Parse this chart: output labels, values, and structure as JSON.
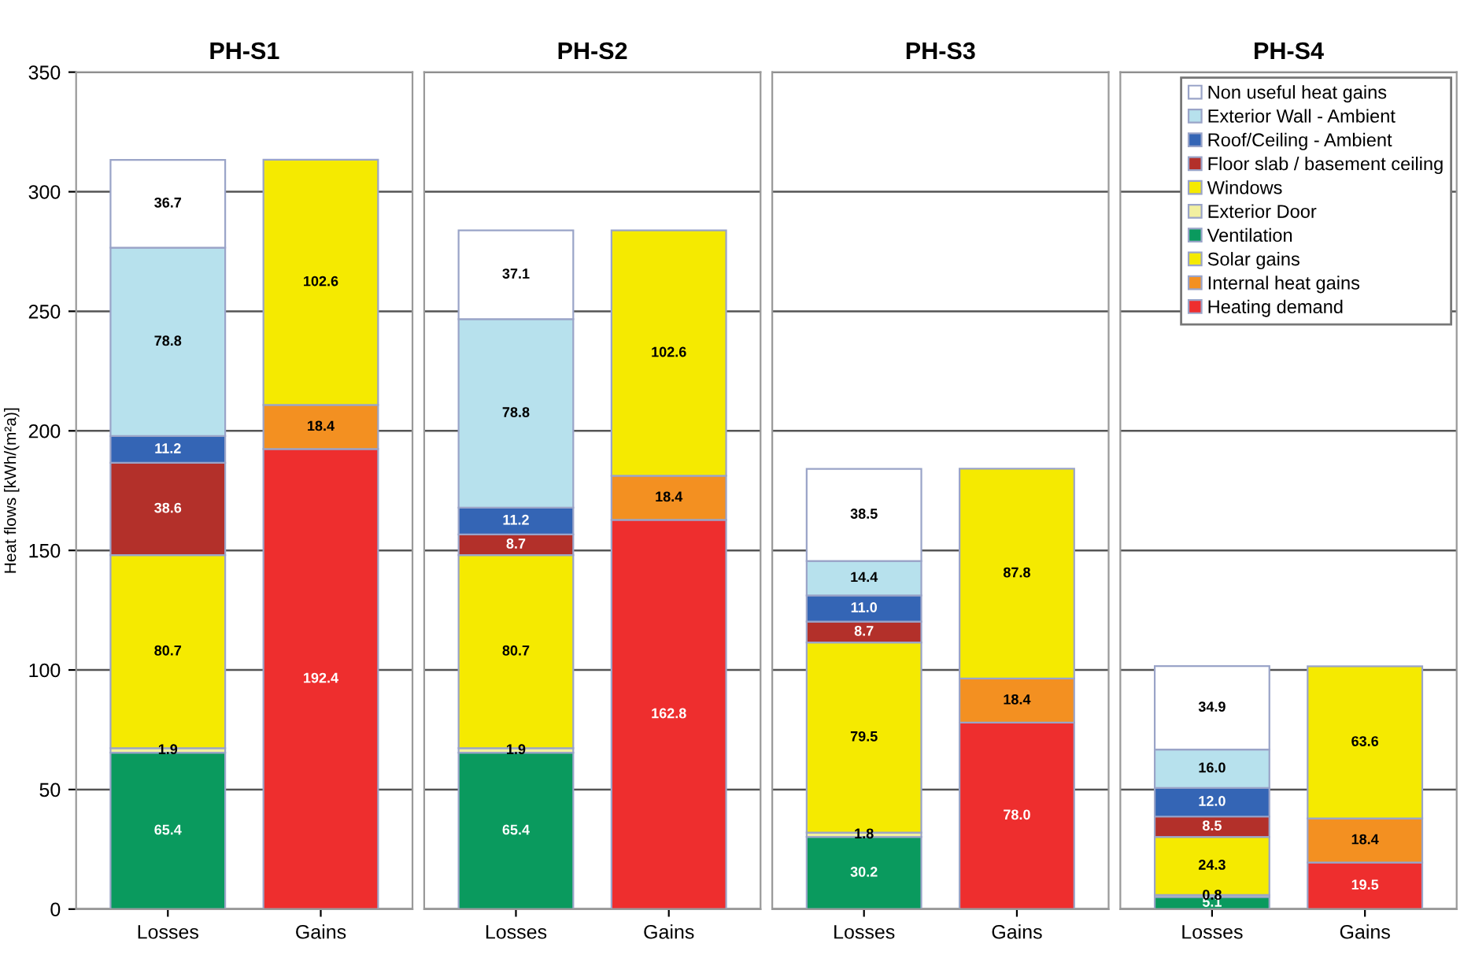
{
  "chart_data": [
    {
      "type": "bar",
      "title": "PH-S1",
      "ylabel": "Heat flows [kWh/(m²a)]",
      "categories": [
        "Losses",
        "Gains"
      ],
      "stacked": true,
      "ylim": [
        0,
        350
      ],
      "yticks": [
        0,
        50,
        100,
        150,
        200,
        250,
        300,
        350
      ],
      "grid": "y",
      "series": [
        {
          "color": "#ee2e2e",
          "values": [
            null,
            192.4
          ],
          "value_labels": [
            null,
            "192.4"
          ]
        },
        {
          "color": "#f39021",
          "values": [
            null,
            18.4
          ],
          "value_labels": [
            null,
            "18.4"
          ]
        },
        {
          "color": "#f5ea00",
          "values": [
            null,
            102.6
          ],
          "value_labels": [
            null,
            "102.6"
          ]
        },
        {
          "color": "#0a9a5e",
          "values": [
            65.4,
            null
          ],
          "value_labels": [
            "65.4",
            null
          ]
        },
        {
          "color": "#f2f0a0",
          "values": [
            1.9,
            null
          ],
          "value_labels": [
            "1.9",
            null
          ]
        },
        {
          "color": "#f5ea00",
          "values": [
            80.7,
            null
          ],
          "value_labels": [
            "80.7",
            null
          ]
        },
        {
          "color": "#b3302a",
          "values": [
            38.6,
            null
          ],
          "value_labels": [
            "38.6",
            null
          ]
        },
        {
          "color": "#3465b5",
          "values": [
            11.2,
            null
          ],
          "value_labels": [
            "11.2",
            null
          ]
        },
        {
          "color": "#b7e1ed",
          "values": [
            78.8,
            null
          ],
          "value_labels": [
            "78.8",
            null
          ]
        },
        {
          "color": "#ffffff",
          "values": [
            36.7,
            null
          ],
          "value_labels": [
            "36.7",
            null
          ]
        }
      ]
    },
    {
      "type": "bar",
      "title": "PH-S2",
      "categories": [
        "Losses",
        "Gains"
      ],
      "stacked": true,
      "ylim": [
        0,
        350
      ],
      "yticks": [
        0,
        50,
        100,
        150,
        200,
        250,
        300,
        350
      ],
      "tick_labels": "x",
      "grid": "y",
      "series": [
        {
          "color": "#ee2e2e",
          "values": [
            null,
            162.8
          ],
          "value_labels": [
            null,
            "162.8"
          ]
        },
        {
          "color": "#f39021",
          "values": [
            null,
            18.4
          ],
          "value_labels": [
            null,
            "18.4"
          ]
        },
        {
          "color": "#f5ea00",
          "values": [
            null,
            102.6
          ],
          "value_labels": [
            null,
            "102.6"
          ]
        },
        {
          "color": "#0a9a5e",
          "values": [
            65.4,
            null
          ],
          "value_labels": [
            "65.4",
            null
          ]
        },
        {
          "color": "#f2f0a0",
          "values": [
            1.9,
            null
          ],
          "value_labels": [
            "1.9",
            null
          ]
        },
        {
          "color": "#f5ea00",
          "values": [
            80.7,
            null
          ],
          "value_labels": [
            "80.7",
            null
          ]
        },
        {
          "color": "#b3302a",
          "values": [
            8.7,
            null
          ],
          "value_labels": [
            "8.7",
            null
          ]
        },
        {
          "color": "#3465b5",
          "values": [
            11.2,
            null
          ],
          "value_labels": [
            "11.2",
            null
          ]
        },
        {
          "color": "#b7e1ed",
          "values": [
            78.8,
            null
          ],
          "value_labels": [
            "78.8",
            null
          ]
        },
        {
          "color": "#ffffff",
          "values": [
            37.1,
            null
          ],
          "value_labels": [
            "37.1",
            null
          ]
        }
      ]
    },
    {
      "type": "bar",
      "title": "PH-S3",
      "categories": [
        "Losses",
        "Gains"
      ],
      "stacked": true,
      "ylim": [
        0,
        350
      ],
      "yticks": [
        0,
        50,
        100,
        150,
        200,
        250,
        300,
        350
      ],
      "tick_labels": "x",
      "grid": "y",
      "series": [
        {
          "color": "#ee2e2e",
          "values": [
            null,
            78.0
          ],
          "value_labels": [
            null,
            "78.0"
          ]
        },
        {
          "color": "#f39021",
          "values": [
            null,
            18.4
          ],
          "value_labels": [
            null,
            "18.4"
          ]
        },
        {
          "color": "#f5ea00",
          "values": [
            null,
            87.8
          ],
          "value_labels": [
            null,
            "87.8"
          ]
        },
        {
          "color": "#0a9a5e",
          "values": [
            30.2,
            null
          ],
          "value_labels": [
            "30.2",
            null
          ]
        },
        {
          "color": "#f2f0a0",
          "values": [
            1.8,
            null
          ],
          "value_labels": [
            "1.8",
            null
          ]
        },
        {
          "color": "#f5ea00",
          "values": [
            79.5,
            null
          ],
          "value_labels": [
            "79.5",
            null
          ]
        },
        {
          "color": "#b3302a",
          "values": [
            8.7,
            null
          ],
          "value_labels": [
            "8.7",
            null
          ]
        },
        {
          "color": "#3465b5",
          "values": [
            11.0,
            null
          ],
          "value_labels": [
            "11.0",
            null
          ]
        },
        {
          "color": "#b7e1ed",
          "values": [
            14.4,
            null
          ],
          "value_labels": [
            "14.4",
            null
          ]
        },
        {
          "color": "#ffffff",
          "values": [
            38.5,
            null
          ],
          "value_labels": [
            "38.5",
            null
          ]
        }
      ]
    },
    {
      "type": "bar",
      "title": "PH-S4",
      "categories": [
        "Losses",
        "Gains"
      ],
      "stacked": true,
      "ylim": [
        0,
        350
      ],
      "yticks": [
        0,
        50,
        100,
        150,
        200,
        250,
        300,
        350
      ],
      "tick_labels": "x",
      "grid": "y",
      "legend": "top right",
      "series": [
        {
          "name": "Heating demand",
          "color": "#ee2e2e",
          "values": [
            null,
            19.5
          ],
          "value_labels": [
            null,
            "19.5"
          ]
        },
        {
          "name": "Internal heat gains",
          "color": "#f39021",
          "values": [
            null,
            18.4
          ],
          "value_labels": [
            null,
            "18.4"
          ]
        },
        {
          "name": "Solar gains",
          "color": "#f5ea00",
          "values": [
            null,
            63.6
          ],
          "value_labels": [
            null,
            "63.6"
          ]
        },
        {
          "name": "Ventilation",
          "color": "#0a9a5e",
          "values": [
            5.1,
            null
          ],
          "value_labels": [
            "5.1",
            null
          ]
        },
        {
          "name": "Exterior Door",
          "color": "#f2f0a0",
          "values": [
            0.8,
            null
          ],
          "value_labels": [
            "0.8",
            null
          ]
        },
        {
          "name": "Windows",
          "color": "#f5ea00",
          "values": [
            24.3,
            null
          ],
          "value_labels": [
            "24.3",
            null
          ]
        },
        {
          "name": "Floor slab / basement ceiling",
          "color": "#b3302a",
          "values": [
            8.5,
            null
          ],
          "value_labels": [
            "8.5",
            null
          ]
        },
        {
          "name": "Roof/Ceiling - Ambient",
          "color": "#3465b5",
          "values": [
            12.0,
            null
          ],
          "value_labels": [
            "12.0",
            null
          ]
        },
        {
          "name": "Exterior Wall - Ambient",
          "color": "#b7e1ed",
          "values": [
            16.0,
            null
          ],
          "value_labels": [
            "16.0",
            null
          ]
        },
        {
          "name": "Non useful heat gains",
          "color": "#ffffff",
          "values": [
            34.9,
            null
          ],
          "value_labels": [
            "34.9",
            null
          ]
        }
      ]
    }
  ]
}
